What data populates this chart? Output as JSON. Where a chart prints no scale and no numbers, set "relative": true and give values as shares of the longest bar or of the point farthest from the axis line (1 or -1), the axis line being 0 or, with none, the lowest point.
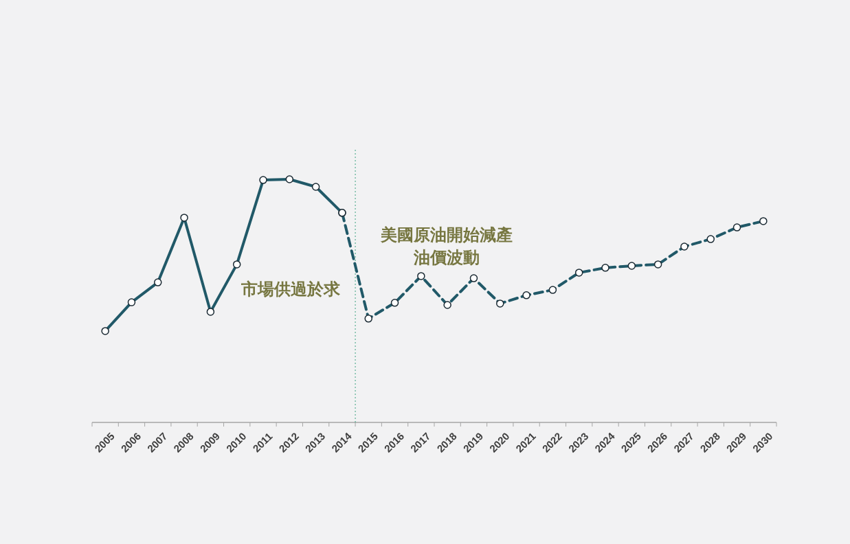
{
  "chart_data": {
    "type": "line",
    "relative": true,
    "categories": [
      "2005",
      "2006",
      "2007",
      "2008",
      "2009",
      "2010",
      "2011",
      "2012",
      "2013",
      "2014",
      "2015",
      "2016",
      "2017",
      "2018",
      "2019",
      "2020",
      "2021",
      "2022",
      "2023",
      "2024",
      "2025",
      "2026",
      "2027",
      "2028",
      "2029",
      "2030"
    ],
    "series": [
      {
        "color": "#215968",
        "line_style": "solid",
        "values": [
          0.376,
          0.494,
          0.576,
          0.842,
          0.455,
          0.65,
          0.997,
          1,
          0.969,
          0.862,
          null,
          null,
          null,
          null,
          null,
          null,
          null,
          null,
          null,
          null,
          null,
          null,
          null,
          null,
          null,
          null
        ]
      },
      {
        "color": "#215968",
        "line_style": "dashed",
        "values": [
          null,
          null,
          null,
          null,
          null,
          null,
          null,
          null,
          null,
          0.862,
          0.427,
          0.492,
          0.602,
          0.483,
          0.593,
          0.489,
          0.523,
          0.545,
          0.616,
          0.636,
          0.644,
          0.65,
          0.723,
          0.754,
          0.802,
          0.828
        ]
      }
    ],
    "marker": "circle",
    "ref_lines": [
      {
        "axis": "x",
        "value": "2015",
        "color": "#3aa17e",
        "line_style": "dotted"
      }
    ],
    "annotations": [
      "市場供過於求",
      "美國原油開始減產",
      "油價波動"
    ],
    "grid": false
  }
}
